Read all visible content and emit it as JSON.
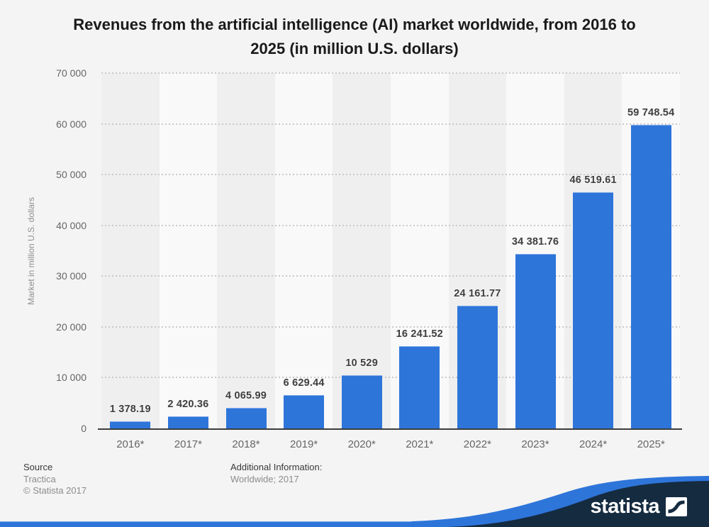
{
  "title": {
    "lines": [
      "Revenues from the artificial intelligence (AI) market worldwide, from 2016 to",
      "2025 (in million U.S. dollars)"
    ]
  },
  "chart_data": {
    "type": "bar",
    "title": "Revenues from the artificial intelligence (AI) market worldwide, from 2016 to 2025 (in million U.S. dollars)",
    "categories": [
      "2016*",
      "2017*",
      "2018*",
      "2019*",
      "2020*",
      "2021*",
      "2022*",
      "2023*",
      "2024*",
      "2025*"
    ],
    "values": [
      1378.19,
      2420.36,
      4065.99,
      6629.44,
      10529,
      16241.52,
      24161.77,
      34381.76,
      46519.61,
      59748.54
    ],
    "value_labels": [
      "1 378.19",
      "2 420.36",
      "4 065.99",
      "6 629.44",
      "10 529",
      "16 241.52",
      "24 161.77",
      "34 381.76",
      "46 519.61",
      "59 748.54"
    ],
    "xlabel": "",
    "ylabel": "Market in million U.S. dollars",
    "ylim": [
      0,
      70000
    ],
    "ytick_step": 10000,
    "ytick_labels": [
      "0",
      "10 000",
      "20 000",
      "30 000",
      "40 000",
      "50 000",
      "60 000",
      "70 000"
    ],
    "grid": "horizontal-dotted",
    "legend": "none",
    "style": {
      "bar_color": "#2e75da",
      "band_colors": [
        "#efefef",
        "#f9f9f9"
      ],
      "gridline_color": "#c9c9c9",
      "axis_color": "#3d3d3d"
    }
  },
  "footer": {
    "source_label": "Source",
    "source_value": "Tractica",
    "copyright": "© Statista 2017",
    "additional_label": "Additional Information:",
    "additional_value": "Worldwide; 2017"
  },
  "branding": {
    "logo_text": "statista",
    "navy": "#152b40",
    "blue": "#2e75da"
  }
}
